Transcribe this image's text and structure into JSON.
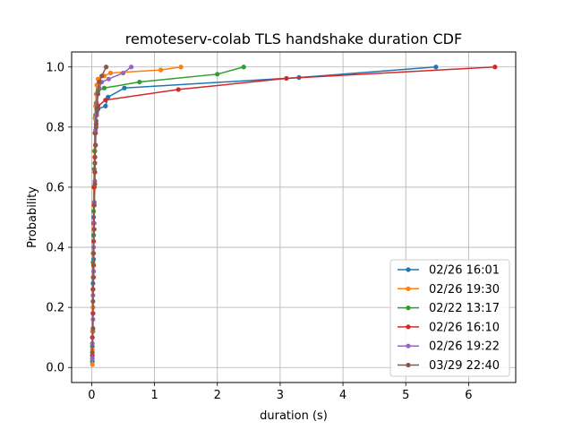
{
  "chart_data": {
    "type": "line",
    "title": "remoteserv-colab TLS handshake duration CDF",
    "xlabel": "duration (s)",
    "ylabel": "Probability",
    "xlim": [
      -0.32,
      6.75
    ],
    "ylim": [
      -0.05,
      1.05
    ],
    "xticks": [
      0,
      1,
      2,
      3,
      4,
      5,
      6
    ],
    "yticks": [
      0.0,
      0.2,
      0.4,
      0.6,
      0.8,
      1.0
    ],
    "xtick_labels": [
      "0",
      "1",
      "2",
      "3",
      "4",
      "5",
      "6"
    ],
    "ytick_labels": [
      "0.0",
      "0.2",
      "0.4",
      "0.6",
      "0.8",
      "1.0"
    ],
    "grid": true,
    "legend_position": "lower right",
    "series": [
      {
        "name": "02/26 16:01",
        "color": "#1f77b4",
        "x": [
          0.01,
          0.01,
          0.02,
          0.02,
          0.02,
          0.03,
          0.03,
          0.03,
          0.04,
          0.04,
          0.05,
          0.05,
          0.06,
          0.06,
          0.07,
          0.08,
          0.1,
          0.22,
          0.26,
          0.52,
          3.3,
          5.48
        ],
        "y": [
          0.02,
          0.07,
          0.12,
          0.2,
          0.28,
          0.36,
          0.44,
          0.5,
          0.55,
          0.6,
          0.65,
          0.7,
          0.74,
          0.78,
          0.82,
          0.85,
          0.86,
          0.87,
          0.9,
          0.93,
          0.965,
          1.0
        ]
      },
      {
        "name": "02/26 19:30",
        "color": "#ff7f0e",
        "x": [
          0.01,
          0.01,
          0.01,
          0.02,
          0.02,
          0.02,
          0.03,
          0.03,
          0.03,
          0.04,
          0.04,
          0.05,
          0.05,
          0.06,
          0.07,
          0.08,
          0.1,
          0.2,
          0.3,
          1.1,
          1.42
        ],
        "y": [
          0.01,
          0.06,
          0.12,
          0.2,
          0.3,
          0.38,
          0.46,
          0.54,
          0.6,
          0.66,
          0.72,
          0.78,
          0.83,
          0.87,
          0.91,
          0.94,
          0.96,
          0.97,
          0.98,
          0.99,
          1.0
        ]
      },
      {
        "name": "02/22 13:17",
        "color": "#2ca02c",
        "x": [
          0.01,
          0.01,
          0.02,
          0.02,
          0.02,
          0.03,
          0.03,
          0.04,
          0.04,
          0.05,
          0.05,
          0.06,
          0.07,
          0.1,
          0.2,
          0.76,
          2.0,
          2.42
        ],
        "y": [
          0.03,
          0.1,
          0.18,
          0.26,
          0.35,
          0.44,
          0.52,
          0.6,
          0.66,
          0.72,
          0.78,
          0.84,
          0.88,
          0.92,
          0.93,
          0.95,
          0.976,
          1.0
        ]
      },
      {
        "name": "02/26 16:10",
        "color": "#d62728",
        "x": [
          0.01,
          0.01,
          0.02,
          0.02,
          0.03,
          0.03,
          0.03,
          0.04,
          0.04,
          0.05,
          0.05,
          0.06,
          0.06,
          0.07,
          0.08,
          0.1,
          0.22,
          1.38,
          3.1,
          6.42
        ],
        "y": [
          0.04,
          0.1,
          0.18,
          0.26,
          0.34,
          0.42,
          0.48,
          0.54,
          0.6,
          0.65,
          0.7,
          0.74,
          0.78,
          0.81,
          0.84,
          0.87,
          0.89,
          0.925,
          0.962,
          1.0
        ]
      },
      {
        "name": "02/26 19:22",
        "color": "#9467bd",
        "x": [
          0.01,
          0.01,
          0.02,
          0.02,
          0.03,
          0.03,
          0.04,
          0.04,
          0.05,
          0.05,
          0.06,
          0.06,
          0.07,
          0.08,
          0.09,
          0.12,
          0.16,
          0.27,
          0.5,
          0.63
        ],
        "y": [
          0.03,
          0.08,
          0.16,
          0.24,
          0.32,
          0.4,
          0.48,
          0.55,
          0.62,
          0.68,
          0.74,
          0.79,
          0.84,
          0.88,
          0.91,
          0.93,
          0.95,
          0.96,
          0.98,
          1.0
        ]
      },
      {
        "name": "03/29 22:40",
        "color": "#8c564b",
        "x": [
          0.01,
          0.02,
          0.02,
          0.03,
          0.03,
          0.04,
          0.04,
          0.05,
          0.05,
          0.06,
          0.07,
          0.08,
          0.1,
          0.12,
          0.16,
          0.23
        ],
        "y": [
          0.05,
          0.13,
          0.22,
          0.3,
          0.38,
          0.46,
          0.54,
          0.61,
          0.68,
          0.74,
          0.8,
          0.86,
          0.91,
          0.95,
          0.97,
          1.0
        ]
      }
    ]
  }
}
